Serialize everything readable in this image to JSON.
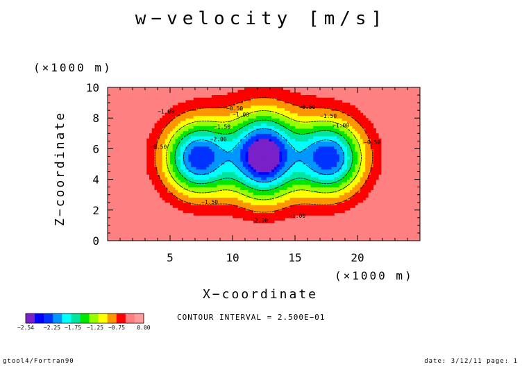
{
  "chart_data": {
    "type": "heatmap",
    "title": "w−velocity [m/s]",
    "xlabel": "X−coordinate",
    "ylabel": "Z−coordinate",
    "x_unit": "(×1000 m)",
    "z_unit": "(×1000 m)",
    "xlim": [
      0,
      25
    ],
    "ylim": [
      0,
      10
    ],
    "x_ticks": [
      5,
      10,
      15,
      20
    ],
    "y_ticks": [
      0,
      2,
      4,
      6,
      8,
      10
    ],
    "x_tick_labels": [
      "5",
      "10",
      "15",
      "20"
    ],
    "y_tick_labels": [
      "0",
      "2",
      "4",
      "6",
      "8",
      "10"
    ],
    "contour_labels": [
      "−0.50",
      "−1.00",
      "−1.50",
      "−2.00",
      "−1.00",
      "−0.50",
      "−1.50",
      "−2.00",
      "−1.00",
      "−0.50",
      "−1.50",
      "−1.00",
      "−0.50"
    ],
    "colorbar": {
      "levels": [
        -2.54,
        -2.5,
        -2.25,
        -2.0,
        -1.75,
        -1.5,
        -1.25,
        -1.0,
        -0.75,
        -0.5,
        -0.25,
        0.0
      ],
      "colors": [
        "#7a20c8",
        "#0000ff",
        "#0033ff",
        "#0096ff",
        "#00ffff",
        "#00e6a0",
        "#00e600",
        "#96ff00",
        "#ffff00",
        "#ff9600",
        "#ff0000",
        "#ff8080",
        "#ff9a9a"
      ],
      "tick_labels": [
        "−2.54",
        "−2.25",
        "−1.75",
        "−1.25",
        "−0.75",
        "0.00"
      ]
    },
    "contour_interval": "CONTOUR INTERVAL = 2.500E−01"
  },
  "footer": {
    "left": "gtool4/Fortran90",
    "right": "date: 3/12/11 page: 1"
  }
}
